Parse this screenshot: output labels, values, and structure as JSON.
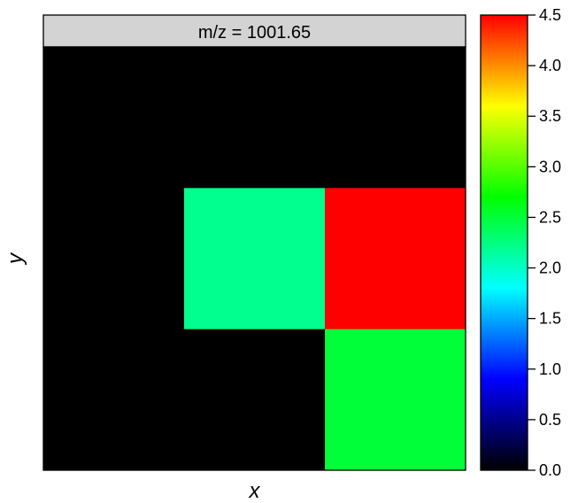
{
  "chart_data": {
    "type": "heatmap",
    "title": "m/z = 1001.65",
    "xlabel": "x",
    "ylabel": "y",
    "grid_cols": 3,
    "grid_rows": 3,
    "cells": [
      [
        0.0,
        0.0,
        0.0
      ],
      [
        0.0,
        2.2,
        4.5
      ],
      [
        0.0,
        0.0,
        2.5
      ]
    ],
    "colorbar": {
      "min": 0.0,
      "max": 4.5,
      "ticks": [
        "0.0",
        "0.5",
        "1.0",
        "1.5",
        "2.0",
        "2.5",
        "3.0",
        "3.5",
        "4.0",
        "4.5"
      ],
      "colors": [
        "#000000",
        "#0000ff",
        "#00ffff",
        "#00ff00",
        "#ffff00",
        "#ff0000"
      ],
      "legend_placement": "right"
    },
    "panel_background": "#000000",
    "strip_background": "#d3d3d3"
  }
}
